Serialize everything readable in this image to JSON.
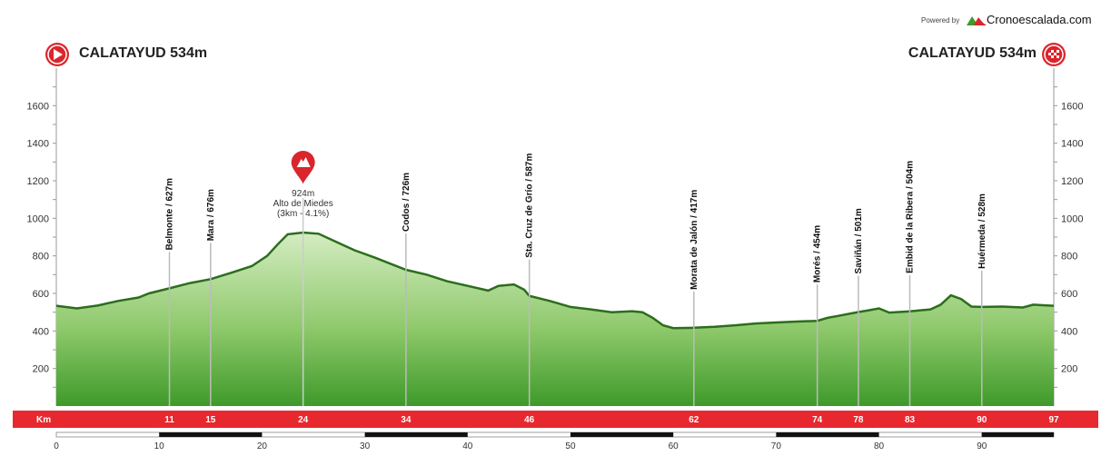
{
  "header": {
    "powered_by": "Powered by",
    "brand": "Cronoescalada.com",
    "start_label": "CALATAYUD 534m",
    "finish_label": "CALATAYUD 534m"
  },
  "colors": {
    "profile_light": "#c9e6b5",
    "profile_dark": "#3f9a2a",
    "profile_edge": "#2b6e1c",
    "band": "#e8282f",
    "marker": "#d9262c"
  },
  "chart_data": {
    "type": "area",
    "xlabel": "Km",
    "x_unit": "km",
    "y_unit": "m",
    "xlim": [
      0,
      97
    ],
    "ylim": [
      0,
      1800
    ],
    "y_ticks": [
      200,
      400,
      600,
      800,
      1000,
      1200,
      1400,
      1600
    ],
    "x_ticks": [
      0,
      10,
      20,
      30,
      40,
      50,
      60,
      70,
      80,
      90
    ],
    "grid": false,
    "profile": [
      {
        "x": 0,
        "y": 534
      },
      {
        "x": 2,
        "y": 520
      },
      {
        "x": 4,
        "y": 535
      },
      {
        "x": 6,
        "y": 560
      },
      {
        "x": 8,
        "y": 578
      },
      {
        "x": 9,
        "y": 600
      },
      {
        "x": 11,
        "y": 627
      },
      {
        "x": 13,
        "y": 655
      },
      {
        "x": 15,
        "y": 676
      },
      {
        "x": 17,
        "y": 710
      },
      {
        "x": 19,
        "y": 745
      },
      {
        "x": 20.5,
        "y": 800
      },
      {
        "x": 21.5,
        "y": 860
      },
      {
        "x": 22.5,
        "y": 915
      },
      {
        "x": 24,
        "y": 924
      },
      {
        "x": 25.5,
        "y": 918
      },
      {
        "x": 27,
        "y": 880
      },
      {
        "x": 29,
        "y": 830
      },
      {
        "x": 31,
        "y": 790
      },
      {
        "x": 34,
        "y": 726
      },
      {
        "x": 36,
        "y": 700
      },
      {
        "x": 38,
        "y": 665
      },
      {
        "x": 40,
        "y": 640
      },
      {
        "x": 42,
        "y": 615
      },
      {
        "x": 43,
        "y": 640
      },
      {
        "x": 44.5,
        "y": 648
      },
      {
        "x": 45.5,
        "y": 620
      },
      {
        "x": 46,
        "y": 587
      },
      {
        "x": 48,
        "y": 560
      },
      {
        "x": 50,
        "y": 528
      },
      {
        "x": 52,
        "y": 515
      },
      {
        "x": 54,
        "y": 500
      },
      {
        "x": 56,
        "y": 505
      },
      {
        "x": 57,
        "y": 500
      },
      {
        "x": 58,
        "y": 470
      },
      {
        "x": 59,
        "y": 430
      },
      {
        "x": 60,
        "y": 415
      },
      {
        "x": 62,
        "y": 417
      },
      {
        "x": 64,
        "y": 422
      },
      {
        "x": 66,
        "y": 430
      },
      {
        "x": 68,
        "y": 440
      },
      {
        "x": 70,
        "y": 445
      },
      {
        "x": 72,
        "y": 450
      },
      {
        "x": 74,
        "y": 454
      },
      {
        "x": 75,
        "y": 470
      },
      {
        "x": 76,
        "y": 480
      },
      {
        "x": 78,
        "y": 501
      },
      {
        "x": 79,
        "y": 510
      },
      {
        "x": 80,
        "y": 520
      },
      {
        "x": 81,
        "y": 498
      },
      {
        "x": 83,
        "y": 504
      },
      {
        "x": 85,
        "y": 515
      },
      {
        "x": 86,
        "y": 540
      },
      {
        "x": 87,
        "y": 590
      },
      {
        "x": 88,
        "y": 570
      },
      {
        "x": 89,
        "y": 530
      },
      {
        "x": 90,
        "y": 528
      },
      {
        "x": 92,
        "y": 530
      },
      {
        "x": 94,
        "y": 525
      },
      {
        "x": 95,
        "y": 540
      },
      {
        "x": 97,
        "y": 534
      }
    ],
    "waypoints": [
      {
        "km": 11,
        "label": "Belmonte / 627m",
        "elevation": 627
      },
      {
        "km": 15,
        "label": "Mara / 676m",
        "elevation": 676
      },
      {
        "km": 34,
        "label": "Codos / 726m",
        "elevation": 726
      },
      {
        "km": 46,
        "label": "Sta. Cruz de Grío / 587m",
        "elevation": 587
      },
      {
        "km": 62,
        "label": "Morata de Jalón / 417m",
        "elevation": 417
      },
      {
        "km": 74,
        "label": "Morés / 454m",
        "elevation": 454
      },
      {
        "km": 78,
        "label": "Saviñán / 501m",
        "elevation": 501
      },
      {
        "km": 83,
        "label": "Embid de la Ribera / 504m",
        "elevation": 504
      },
      {
        "km": 90,
        "label": "Huérmeda / 528m",
        "elevation": 528
      }
    ],
    "climb": {
      "km": 24,
      "elevation": 924,
      "elevation_label": "924m",
      "name": "Alto de Miedes",
      "details": "(3km - 4.1%)"
    },
    "km_band": [
      {
        "km": 11,
        "label": "11"
      },
      {
        "km": 15,
        "label": "15"
      },
      {
        "km": 24,
        "label": "24"
      },
      {
        "km": 34,
        "label": "34"
      },
      {
        "km": 46,
        "label": "46"
      },
      {
        "km": 62,
        "label": "62"
      },
      {
        "km": 74,
        "label": "74"
      },
      {
        "km": 78,
        "label": "78"
      },
      {
        "km": 83,
        "label": "83"
      },
      {
        "km": 90,
        "label": "90"
      },
      {
        "km": 97,
        "label": "97"
      }
    ]
  }
}
